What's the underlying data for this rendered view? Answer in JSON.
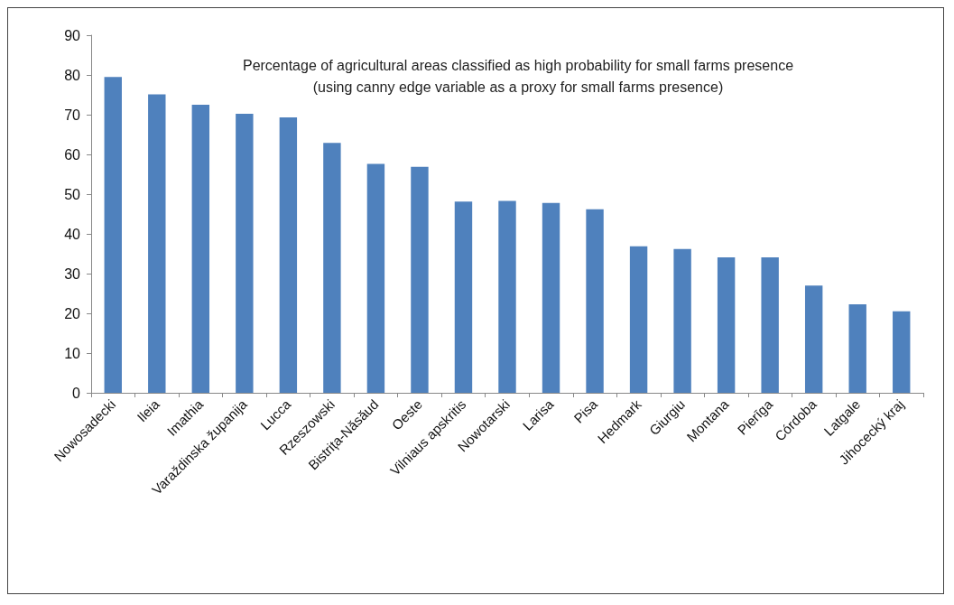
{
  "chart_data": {
    "type": "bar",
    "title": "Percentage of agricultural areas classified as high probability for small farms presence",
    "subtitle": "(using canny edge variable as a proxy for small farms presence)",
    "categories": [
      "Nowosadecki",
      "Ileia",
      "Imathia",
      "Varaždinska županija",
      "Lucca",
      "Rzeszowski",
      "Bistrița-Năsăud",
      "Oeste",
      "Vilniaus apskritis",
      "Nowotarski",
      "Larisa",
      "Pisa",
      "Hedmark",
      "Giurgiu",
      "Montana",
      "Pierīga",
      "Córdoba",
      "Latgale",
      "Jihocecký kraj"
    ],
    "values": [
      79.5,
      75.1,
      72.5,
      70.2,
      69.3,
      62.9,
      57.6,
      56.9,
      48.1,
      48.3,
      47.8,
      46.2,
      36.9,
      36.2,
      34.1,
      34.1,
      27.0,
      22.3,
      20.5
    ],
    "color": "#4f81bd",
    "ylim": [
      0,
      90
    ],
    "yticks": [
      0,
      10,
      20,
      30,
      40,
      50,
      60,
      70,
      80,
      90
    ],
    "grid": false
  }
}
